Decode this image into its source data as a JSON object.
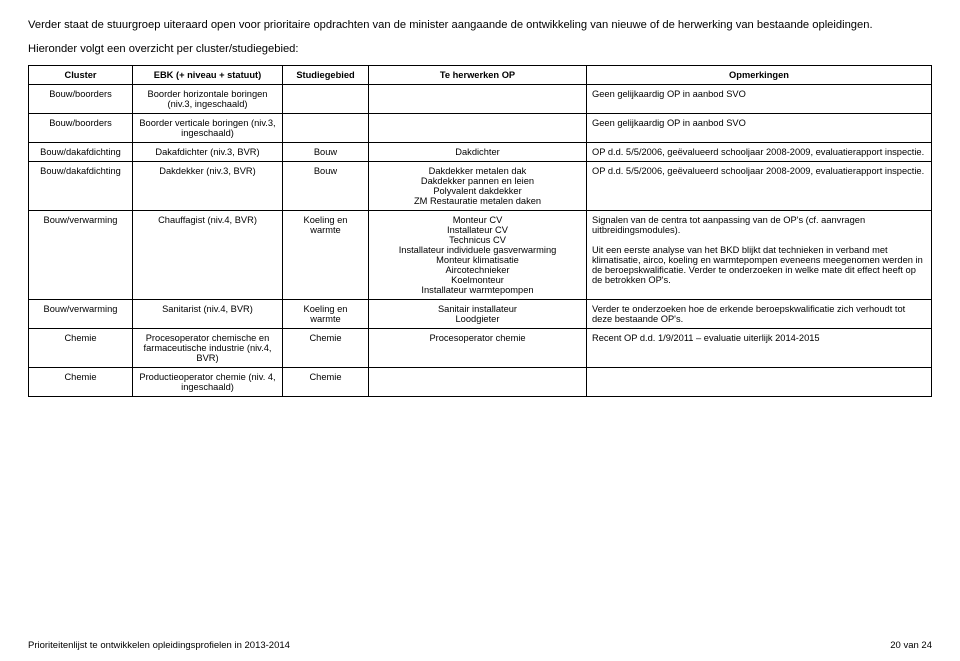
{
  "intro": "Verder staat de stuurgroep uiteraard open voor prioritaire opdrachten van de minister aangaande de ontwikkeling van nieuwe of de herwerking van bestaande opleidingen.",
  "subhead": "Hieronder volgt een overzicht per cluster/studiegebied:",
  "headers": {
    "c0": "Cluster",
    "c1": "EBK (+ niveau + statuut)",
    "c2": "Studiegebied",
    "c3": "Te herwerken OP",
    "c4": "Opmerkingen"
  },
  "rows": [
    {
      "c0": "Bouw/boorders",
      "c1": "Boorder horizontale boringen (niv.3, ingeschaald)",
      "c2": "",
      "c3": "",
      "c4": "Geen gelijkaardig OP in aanbod SVO"
    },
    {
      "c0": "Bouw/boorders",
      "c1": "Boorder verticale boringen (niv.3, ingeschaald)",
      "c2": "",
      "c3": "",
      "c4": "Geen gelijkaardig OP in aanbod SVO"
    },
    {
      "c0": "Bouw/dakafdichting",
      "c1": "Dakafdichter (niv.3, BVR)",
      "c2": "Bouw",
      "c3": "Dakdichter",
      "c4": "OP d.d. 5/5/2006, geëvalueerd schooljaar 2008-2009, evaluatierapport inspectie."
    },
    {
      "c0": "Bouw/dakafdichting",
      "c1": "Dakdekker (niv.3, BVR)",
      "c2": "Bouw",
      "c3": "Dakdekker metalen dak\nDakdekker pannen en leien\nPolyvalent dakdekker\nZM Restauratie metalen daken",
      "c4": "OP d.d. 5/5/2006, geëvalueerd schooljaar 2008-2009, evaluatierapport inspectie."
    },
    {
      "c0": "Bouw/verwarming",
      "c1": "Chauffagist (niv.4, BVR)",
      "c2": "Koeling en warmte",
      "c3": "Monteur CV\nInstallateur CV\nTechnicus CV\nInstallateur individuele gasverwarming\nMonteur klimatisatie\nAircotechnieker\nKoelmonteur\nInstallateur warmtepompen",
      "c4": "Signalen van de centra tot aanpassing van de OP's (cf. aanvragen uitbreidingsmodules).\n\nUit een eerste analyse van het BKD blijkt dat technieken in verband met klimatisatie, airco, koeling en warmtepompen eveneens meegenomen werden in de beroepskwalificatie. Verder te onderzoeken in welke mate dit effect heeft op de betrokken OP's."
    },
    {
      "c0": "Bouw/verwarming",
      "c1": "Sanitarist (niv.4, BVR)",
      "c2": "Koeling en warmte",
      "c3": "Sanitair installateur\nLoodgieter",
      "c4": "Verder te onderzoeken hoe de erkende beroepskwalificatie zich verhoudt tot deze bestaande OP's."
    },
    {
      "c0": "Chemie",
      "c1": "Procesoperator chemische en farmaceutische industrie (niv.4, BVR)",
      "c2": "Chemie",
      "c3": "Procesoperator chemie",
      "c4": "Recent OP d.d. 1/9/2011 – evaluatie uiterlijk 2014-2015"
    },
    {
      "c0": "Chemie",
      "c1": "Productieoperator chemie (niv. 4, ingeschaald)",
      "c2": "Chemie",
      "c3": "",
      "c4": ""
    }
  ],
  "footer": {
    "left": "Prioriteitenlijst te ontwikkelen opleidingsprofielen in 2013-2014",
    "right": "20 van 24"
  }
}
